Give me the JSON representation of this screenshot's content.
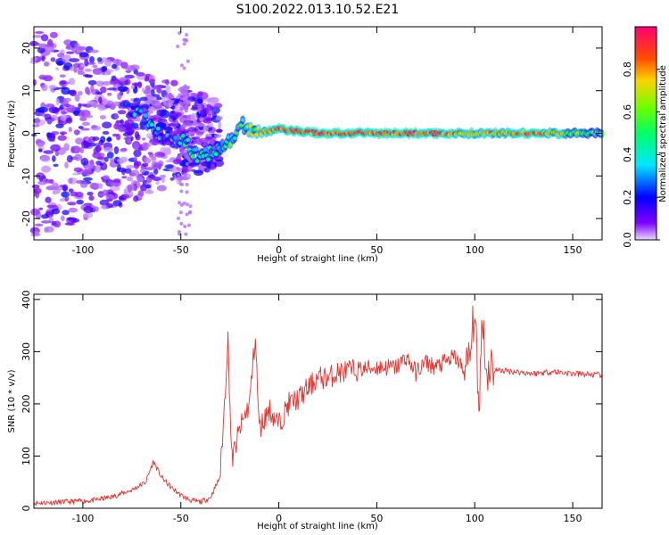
{
  "title": "S100.2022.013.10.52.E21",
  "colors": {
    "snr_line": "#e8312c",
    "frame": "#000000"
  },
  "chart_data": [
    {
      "type": "heatmap",
      "name": "spectrogram",
      "xlabel": "Height of straight line (km)",
      "ylabel": "Frequency (Hz)",
      "xlim": [
        -125,
        165
      ],
      "ylim": [
        -25,
        25
      ],
      "xticks": [
        -100,
        -50,
        0,
        50,
        100,
        150
      ],
      "yticks": [
        -20,
        -10,
        0,
        10,
        20
      ],
      "colormap": "gist_rainbow_r",
      "colorbar": {
        "label": "Normalized spectral amplitude",
        "range": [
          0.0,
          1.0
        ],
        "ticks": [
          "0.0",
          "0.2",
          "0.4",
          "0.6",
          "0.8"
        ]
      },
      "ridge": [
        {
          "x": -80,
          "y": 7,
          "amp": 0.25
        },
        {
          "x": -70,
          "y": 4,
          "amp": 0.35
        },
        {
          "x": -62,
          "y": 0,
          "amp": 0.3
        },
        {
          "x": -55,
          "y": -1,
          "amp": 0.25
        },
        {
          "x": -48,
          "y": -2,
          "amp": 0.4
        },
        {
          "x": -40,
          "y": -6,
          "amp": 0.45
        },
        {
          "x": -33,
          "y": -4,
          "amp": 0.4
        },
        {
          "x": -26,
          "y": -2,
          "amp": 0.45
        },
        {
          "x": -18,
          "y": 2,
          "amp": 0.5
        },
        {
          "x": -10,
          "y": 0,
          "amp": 0.7
        },
        {
          "x": 0,
          "y": 1,
          "amp": 0.85
        },
        {
          "x": 20,
          "y": 0,
          "amp": 0.9
        },
        {
          "x": 50,
          "y": 0,
          "amp": 0.9
        },
        {
          "x": 80,
          "y": 0,
          "amp": 0.85
        },
        {
          "x": 100,
          "y": 0,
          "amp": 0.7
        },
        {
          "x": 130,
          "y": 0,
          "amp": 0.9
        },
        {
          "x": 150,
          "y": 0,
          "amp": 0.6
        },
        {
          "x": 165,
          "y": 0,
          "amp": 0.5
        }
      ]
    },
    {
      "type": "line",
      "name": "snr",
      "xlabel": "Height of straight line (km)",
      "ylabel": "SNR (10 * v/v)",
      "xlim": [
        -125,
        165
      ],
      "ylim": [
        0,
        410
      ],
      "xticks": [
        -100,
        -50,
        0,
        50,
        100,
        150
      ],
      "yticks": [
        0,
        100,
        200,
        300,
        400
      ],
      "series": [
        {
          "color": "#e8312c",
          "x": [
            -125,
            -110,
            -95,
            -85,
            -75,
            -68,
            -64,
            -60,
            -55,
            -50,
            -45,
            -40,
            -35,
            -30,
            -28,
            -26,
            -24,
            -20,
            -15,
            -12,
            -10,
            -5,
            0,
            5,
            10,
            15,
            20,
            25,
            30,
            40,
            50,
            60,
            65,
            70,
            75,
            80,
            85,
            90,
            95,
            98,
            100,
            102,
            104,
            106,
            108,
            110,
            120,
            130,
            140,
            150,
            165
          ],
          "y": [
            10,
            12,
            15,
            22,
            35,
            50,
            90,
            60,
            40,
            25,
            15,
            12,
            20,
            60,
            180,
            330,
            90,
            150,
            200,
            330,
            150,
            190,
            160,
            200,
            210,
            230,
            250,
            250,
            260,
            265,
            270,
            270,
            290,
            260,
            280,
            270,
            280,
            290,
            260,
            300,
            390,
            180,
            380,
            250,
            280,
            265,
            262,
            258,
            262,
            258,
            255
          ]
        }
      ]
    }
  ]
}
